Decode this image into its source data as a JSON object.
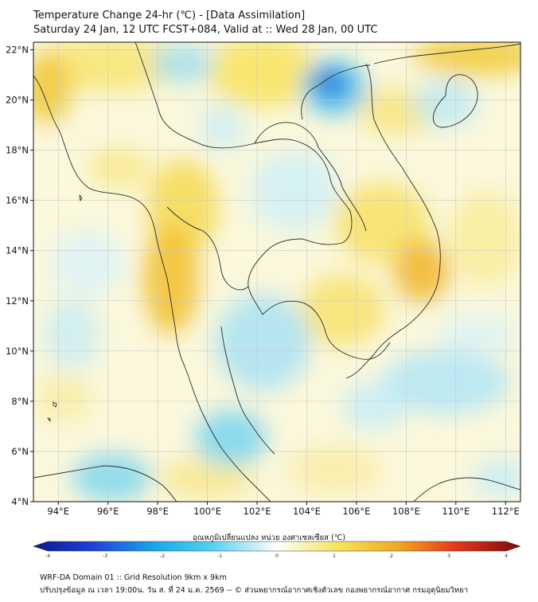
{
  "header": {
    "title_line1": "Temperature Change 24-hr (℃) - [Data Assimilation]",
    "title_line2": "Saturday 24 Jan, 12 UTC FCST+084, Valid at :: Wed 28 Jan, 00 UTC"
  },
  "map": {
    "lat_labels": [
      "22°N",
      "20°N",
      "18°N",
      "16°N",
      "14°N",
      "12°N",
      "10°N",
      "8°N",
      "6°N",
      "4°N"
    ],
    "lon_labels": [
      "94°E",
      "96°E",
      "98°E",
      "100°E",
      "102°E",
      "104°E",
      "106°E",
      "108°E",
      "110°E",
      "112°E"
    ],
    "lat_values": [
      22,
      20,
      18,
      16,
      14,
      12,
      10,
      8,
      6,
      4
    ],
    "lon_values": [
      94,
      96,
      98,
      100,
      102,
      104,
      106,
      108,
      110,
      112
    ],
    "lat_range": [
      4,
      22.3
    ],
    "lon_range": [
      93,
      112.6
    ],
    "colors": {
      "cool_strong": "#1565d8",
      "cool": "#7fd6f0",
      "cool_light": "#c8eef8",
      "warm_light": "#fdf3b5",
      "warm": "#f8df55",
      "warm_strong": "#f0b52a",
      "border": "#333333"
    }
  },
  "colorbar": {
    "title": "อุณหภูมิเปลี่ยนแปลง หน่วย องศาเซลเซียส (℃)",
    "ticks": [
      "-4",
      "-3",
      "-2",
      "-1",
      "0",
      "1",
      "2",
      "3",
      "4"
    ],
    "range": [
      -4,
      4
    ]
  },
  "footer": {
    "line1": "WRF-DA Domain 01 :: Grid Resolution 9km x 9km",
    "line2": "ปรับปรุงข้อมูล ณ เวลา 19:00น. วัน ส. ที่ 24 ม.ค. 2569 -- © ส่วนพยากรณ์อากาศเชิงตัวเลข กองพยากรณ์อากาศ กรมอุตุนิยมวิทยา"
  }
}
